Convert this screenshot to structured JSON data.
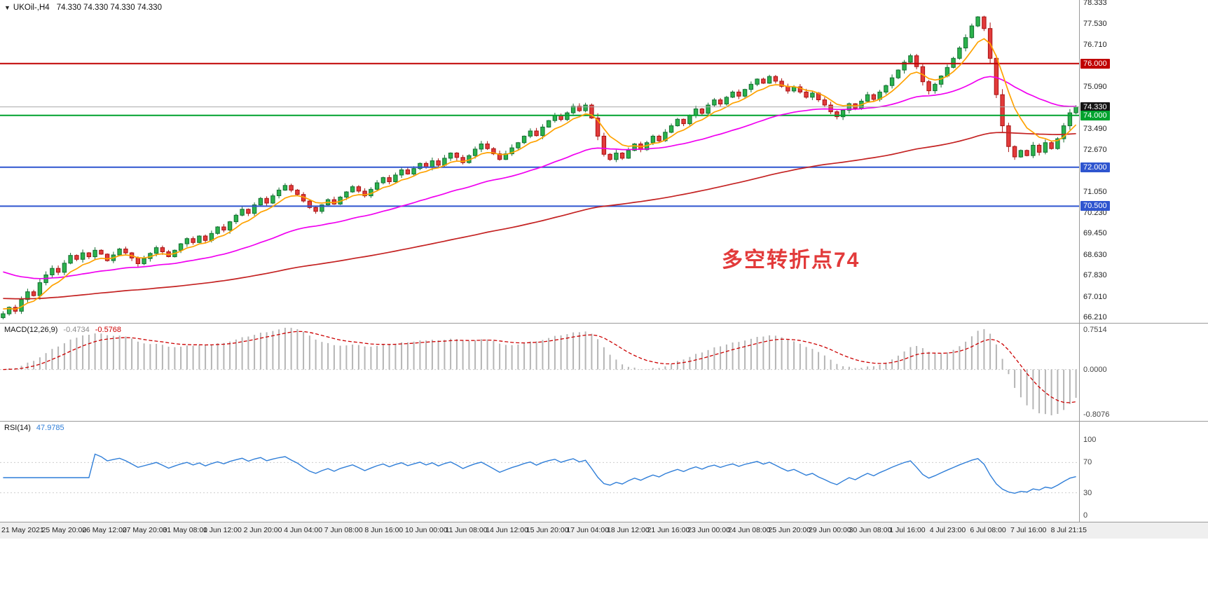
{
  "window": {
    "collapse_icon": "▼",
    "symbol_title": "UKOil-,H4",
    "ohlc_display": "74.330 74.330 74.330 74.330"
  },
  "annotation": {
    "text": "多空转折点74",
    "color": "#e23a3a"
  },
  "price_axis": {
    "ticks": [
      "78.333",
      "77.530",
      "76.710",
      "75.090",
      "73.490",
      "72.670",
      "71.050",
      "70.230",
      "69.450",
      "68.630",
      "67.830",
      "67.010",
      "66.210"
    ]
  },
  "levels": [
    {
      "label": "76.000",
      "value": 76.0,
      "line_color": "#c00000",
      "badge_color": "#c00000",
      "width": 2,
      "current": false
    },
    {
      "label": "74.330",
      "value": 74.33,
      "line_color": "#a8a8a8",
      "badge_color": "#151515",
      "width": 1,
      "current": true
    },
    {
      "label": "74.000",
      "value": 74.0,
      "line_color": "#00a22e",
      "badge_color": "#00a22e",
      "width": 2,
      "current": false
    },
    {
      "label": "72.000",
      "value": 72.0,
      "line_color": "#2f55cf",
      "badge_color": "#2f55cf",
      "width": 2,
      "current": false
    },
    {
      "label": "70.500",
      "value": 70.5,
      "line_color": "#2f55cf",
      "badge_color": "#2f55cf",
      "width": 2,
      "current": false
    }
  ],
  "macd": {
    "label": "MACD(12,26,9)",
    "value_main": "-0.4734",
    "value_signal": "-0.5768",
    "axis": [
      "0.7514",
      "0.0000",
      "-0.8076"
    ]
  },
  "rsi": {
    "label": "RSI(14)",
    "value": "47.9785",
    "axis": [
      "100",
      "70",
      "30",
      "0"
    ],
    "levels": [
      70,
      30
    ]
  },
  "time_axis": [
    "21 May 2021",
    "25 May 20:00",
    "26 May 12:00",
    "27 May 20:00",
    "31 May 08:00",
    "1 Jun 12:00",
    "2 Jun 20:00",
    "4 Jun 04:00",
    "7 Jun 08:00",
    "8 Jun 16:00",
    "10 Jun 00:00",
    "11 Jun 08:00",
    "14 Jun 12:00",
    "15 Jun 20:00",
    "17 Jun 04:00",
    "18 Jun 12:00",
    "21 Jun 16:00",
    "23 Jun 00:00",
    "24 Jun 08:00",
    "25 Jun 20:00",
    "29 Jun 00:00",
    "30 Jun 08:00",
    "1 Jul 16:00",
    "4 Jul 23:00",
    "6 Jul 08:00",
    "7 Jul 16:00",
    "8 Jul 21:15"
  ],
  "chart_data": {
    "type": "candlestick",
    "symbol": "UKOil-",
    "timeframe": "H4",
    "title": "UKOil-,H4 74.330 74.330 74.330 74.330",
    "x_range": [
      "21 May 2021",
      "8 Jul 21:15"
    ],
    "ylim": [
      66.0,
      78.45
    ],
    "last_price": 74.33,
    "open_first": 66.2,
    "close": [
      66.35,
      66.6,
      66.45,
      66.9,
      67.2,
      67.05,
      67.55,
      67.85,
      68.1,
      67.95,
      68.3,
      68.6,
      68.45,
      68.7,
      68.55,
      68.8,
      68.65,
      68.4,
      68.62,
      68.85,
      68.7,
      68.5,
      68.28,
      68.48,
      68.68,
      68.9,
      68.74,
      68.55,
      68.8,
      69.05,
      69.25,
      69.1,
      69.35,
      69.18,
      69.45,
      69.7,
      69.58,
      69.9,
      70.15,
      70.38,
      70.22,
      70.55,
      70.8,
      70.62,
      70.9,
      71.12,
      71.3,
      71.12,
      70.95,
      70.7,
      70.45,
      70.3,
      70.55,
      70.75,
      70.58,
      70.85,
      71.05,
      71.25,
      71.08,
      70.9,
      71.15,
      71.4,
      71.6,
      71.44,
      71.7,
      71.9,
      71.74,
      71.95,
      72.15,
      72.0,
      72.25,
      72.08,
      72.35,
      72.55,
      72.38,
      72.18,
      72.45,
      72.7,
      72.9,
      72.72,
      72.52,
      72.3,
      72.52,
      72.75,
      72.95,
      73.2,
      73.4,
      73.22,
      73.55,
      73.8,
      74.0,
      73.84,
      74.1,
      74.35,
      74.18,
      74.4,
      73.9,
      73.2,
      72.5,
      72.3,
      72.55,
      72.35,
      72.65,
      72.9,
      72.68,
      72.95,
      73.2,
      73.02,
      73.35,
      73.6,
      73.85,
      73.68,
      74.0,
      74.25,
      74.08,
      74.4,
      74.6,
      74.44,
      74.7,
      74.9,
      74.74,
      75.0,
      75.2,
      75.4,
      75.24,
      75.5,
      75.32,
      75.12,
      74.94,
      75.1,
      74.9,
      74.7,
      74.86,
      74.6,
      74.4,
      74.14,
      73.95,
      74.2,
      74.45,
      74.28,
      74.55,
      74.8,
      74.62,
      74.9,
      75.15,
      75.45,
      75.75,
      76.05,
      76.3,
      75.88,
      75.3,
      74.95,
      75.2,
      75.52,
      75.85,
      76.2,
      76.6,
      77.0,
      77.45,
      77.8,
      77.35,
      76.2,
      74.8,
      73.6,
      72.8,
      72.4,
      72.65,
      72.45,
      72.85,
      72.58,
      72.95,
      72.72,
      73.1,
      73.6,
      74.1,
      74.33
    ],
    "ma_seed_fast": 66.6,
    "ma_seed_mid": 68.05,
    "ma_seed_slow": 66.95,
    "indicators": [
      {
        "type": "macd",
        "params": [
          12,
          26,
          9
        ]
      },
      {
        "type": "rsi",
        "params": [
          14
        ]
      }
    ],
    "colors": {
      "up": "#2bb24c",
      "up_edge": "#156e33",
      "down": "#e23b3b",
      "down_edge": "#a81111",
      "ma_fast": "#ffa200",
      "ma_mid": "#f000f0",
      "ma_slow": "#c42222",
      "macd_hist": "#b5b5b5",
      "macd_signal": "#cc0000",
      "rsi": "#2f7ed8",
      "current_price_line": "#a8a8a8"
    }
  }
}
